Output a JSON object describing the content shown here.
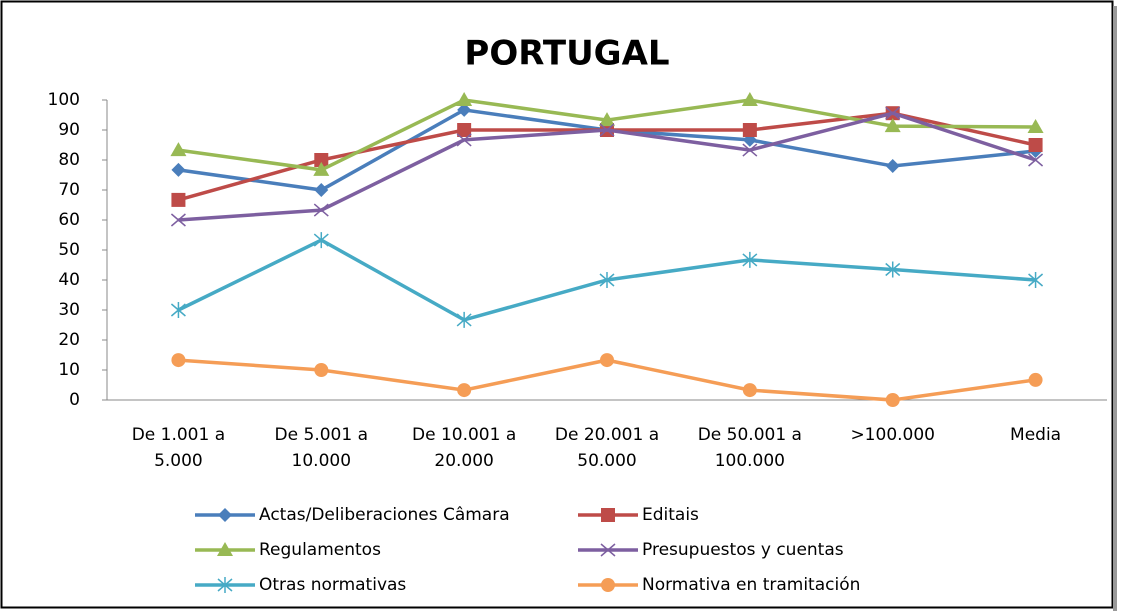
{
  "chart_data": {
    "type": "line",
    "title": "PORTUGAL",
    "categories": [
      [
        "De 1.001 a",
        "5.000"
      ],
      [
        "De 5.001 a",
        "10.000"
      ],
      [
        "De 10.001 a",
        "20.000"
      ],
      [
        "De 20.001 a",
        "50.000"
      ],
      [
        "De 50.001 a",
        "100.000"
      ],
      [
        ">100.000"
      ],
      [
        "Media"
      ]
    ],
    "series": [
      {
        "name": "Actas/Deliberaciones Câmara",
        "color": "#4a7ebb",
        "marker": "diamond",
        "values": [
          76.7,
          70,
          96.7,
          90,
          86.7,
          78,
          83
        ]
      },
      {
        "name": "Editais",
        "color": "#be4b48",
        "marker": "square",
        "values": [
          66.7,
          80,
          90,
          90,
          90,
          95.6,
          85
        ]
      },
      {
        "name": "Regulamentos",
        "color": "#98b954",
        "marker": "triangle",
        "values": [
          83.3,
          76.7,
          100,
          93.3,
          100,
          91.3,
          91
        ]
      },
      {
        "name": "Presupuestos y cuentas",
        "color": "#7d5fa0",
        "marker": "x",
        "values": [
          60,
          63.3,
          86.7,
          90,
          83.3,
          95.6,
          80
        ]
      },
      {
        "name": "Otras normativas",
        "color": "#46aac5",
        "marker": "star",
        "values": [
          30,
          53.3,
          26.7,
          40,
          46.7,
          43.5,
          40
        ]
      },
      {
        "name": "Normativa en tramitación",
        "color": "#f59d56",
        "marker": "circle",
        "values": [
          13.3,
          10,
          3.3,
          13.3,
          3.3,
          0,
          6.7
        ]
      }
    ],
    "ylim": [
      0,
      100
    ],
    "yticks": [
      0,
      10,
      20,
      30,
      40,
      50,
      60,
      70,
      80,
      90,
      100
    ],
    "grid": false
  }
}
